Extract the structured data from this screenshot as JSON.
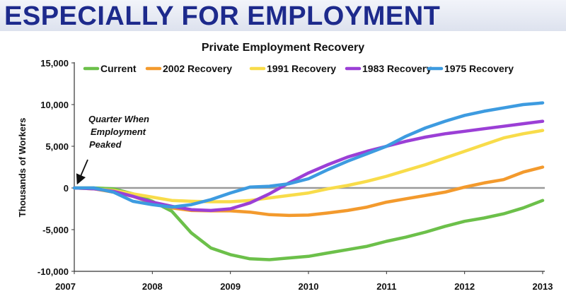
{
  "headline": "ESPECIALLY FOR EMPLOYMENT",
  "chart_data": {
    "type": "line",
    "title": "Private Employment Recovery",
    "xlabel": "",
    "ylabel": "Thousands of Workers",
    "xlim": [
      2007,
      2013
    ],
    "ylim": [
      -10000,
      15000
    ],
    "x_ticks": [
      {
        "value": 2007,
        "label": "2007"
      },
      {
        "value": 2008,
        "label": "2008"
      },
      {
        "value": 2009,
        "label": "2009"
      },
      {
        "value": 2010,
        "label": "2010"
      },
      {
        "value": 2011,
        "label": "2011"
      },
      {
        "value": 2012,
        "label": "2012"
      },
      {
        "value": 2013,
        "label": "2013"
      }
    ],
    "y_ticks": [
      {
        "value": 15000,
        "label": "15,000"
      },
      {
        "value": 10000,
        "label": "10,000"
      },
      {
        "value": 5000,
        "label": "5,000"
      },
      {
        "value": 0,
        "label": "0"
      },
      {
        "value": -5000,
        "label": "-5,000"
      },
      {
        "value": -10000,
        "label": "-10,000"
      }
    ],
    "grid": false,
    "legend_position": "top",
    "annotation": {
      "lines": [
        "Quarter When",
        "Employment",
        "Peaked"
      ],
      "x": 2007.02,
      "y": 0
    },
    "series": [
      {
        "name": "Current",
        "color": "#6cc04a",
        "x": [
          2007.0,
          2007.25,
          2007.5,
          2007.75,
          2008.0,
          2008.25,
          2008.5,
          2008.75,
          2009.0,
          2009.25,
          2009.5,
          2009.75,
          2010.0,
          2010.25,
          2010.5,
          2010.75,
          2011.0,
          2011.25,
          2011.5,
          2011.75,
          2012.0,
          2012.25,
          2012.5,
          2012.75,
          2013.0
        ],
        "y": [
          0,
          0,
          -100,
          -700,
          -1600,
          -2800,
          -5400,
          -7200,
          -8000,
          -8500,
          -8600,
          -8400,
          -8200,
          -7800,
          -7400,
          -7000,
          -6400,
          -5900,
          -5300,
          -4600,
          -4000,
          -3600,
          -3100,
          -2400,
          -1500
        ]
      },
      {
        "name": "2002 Recovery",
        "color": "#f39a2d",
        "x": [
          2007.0,
          2007.25,
          2007.5,
          2007.75,
          2008.0,
          2008.25,
          2008.5,
          2008.75,
          2009.0,
          2009.25,
          2009.5,
          2009.75,
          2010.0,
          2010.25,
          2010.5,
          2010.75,
          2011.0,
          2011.25,
          2011.5,
          2011.75,
          2012.0,
          2012.25,
          2012.5,
          2012.75,
          2013.0
        ],
        "y": [
          0,
          -100,
          -500,
          -1000,
          -1800,
          -2400,
          -2700,
          -2750,
          -2750,
          -2900,
          -3200,
          -3300,
          -3250,
          -3000,
          -2700,
          -2300,
          -1700,
          -1300,
          -900,
          -500,
          100,
          600,
          1000,
          1900,
          2500
        ]
      },
      {
        "name": "1991 Recovery",
        "color": "#f8dc4a",
        "x": [
          2007.0,
          2007.25,
          2007.5,
          2007.75,
          2008.0,
          2008.25,
          2008.5,
          2008.75,
          2009.0,
          2009.25,
          2009.5,
          2009.75,
          2010.0,
          2010.25,
          2010.5,
          2010.75,
          2011.0,
          2011.25,
          2011.5,
          2011.75,
          2012.0,
          2012.25,
          2012.5,
          2012.75,
          2013.0
        ],
        "y": [
          0,
          -100,
          -300,
          -700,
          -1100,
          -1500,
          -1600,
          -1650,
          -1650,
          -1500,
          -1200,
          -900,
          -600,
          -100,
          300,
          800,
          1400,
          2100,
          2800,
          3600,
          4400,
          5200,
          6000,
          6500,
          6900
        ]
      },
      {
        "name": "1983 Recovery",
        "color": "#9b3fd6",
        "x": [
          2007.0,
          2007.25,
          2007.5,
          2007.75,
          2008.0,
          2008.25,
          2008.5,
          2008.75,
          2009.0,
          2009.25,
          2009.5,
          2009.75,
          2010.0,
          2010.25,
          2010.5,
          2010.75,
          2011.0,
          2011.25,
          2011.5,
          2011.75,
          2012.0,
          2012.25,
          2012.5,
          2012.75,
          2013.0
        ],
        "y": [
          0,
          -100,
          -400,
          -1000,
          -1700,
          -2200,
          -2600,
          -2700,
          -2500,
          -1800,
          -700,
          600,
          1800,
          2800,
          3700,
          4400,
          5000,
          5600,
          6100,
          6500,
          6800,
          7100,
          7400,
          7700,
          8000
        ]
      },
      {
        "name": "1975 Recovery",
        "color": "#3d9be0",
        "x": [
          2007.0,
          2007.25,
          2007.5,
          2007.75,
          2008.0,
          2008.25,
          2008.5,
          2008.75,
          2009.0,
          2009.25,
          2009.5,
          2009.75,
          2010.0,
          2010.25,
          2010.5,
          2010.75,
          2011.0,
          2011.25,
          2011.5,
          2011.75,
          2012.0,
          2012.25,
          2012.5,
          2012.75,
          2013.0
        ],
        "y": [
          0,
          0,
          -500,
          -1600,
          -2000,
          -2300,
          -2000,
          -1400,
          -600,
          100,
          200,
          500,
          1100,
          2200,
          3200,
          4100,
          5000,
          6200,
          7200,
          8000,
          8700,
          9200,
          9600,
          10000,
          10200
        ]
      }
    ]
  }
}
